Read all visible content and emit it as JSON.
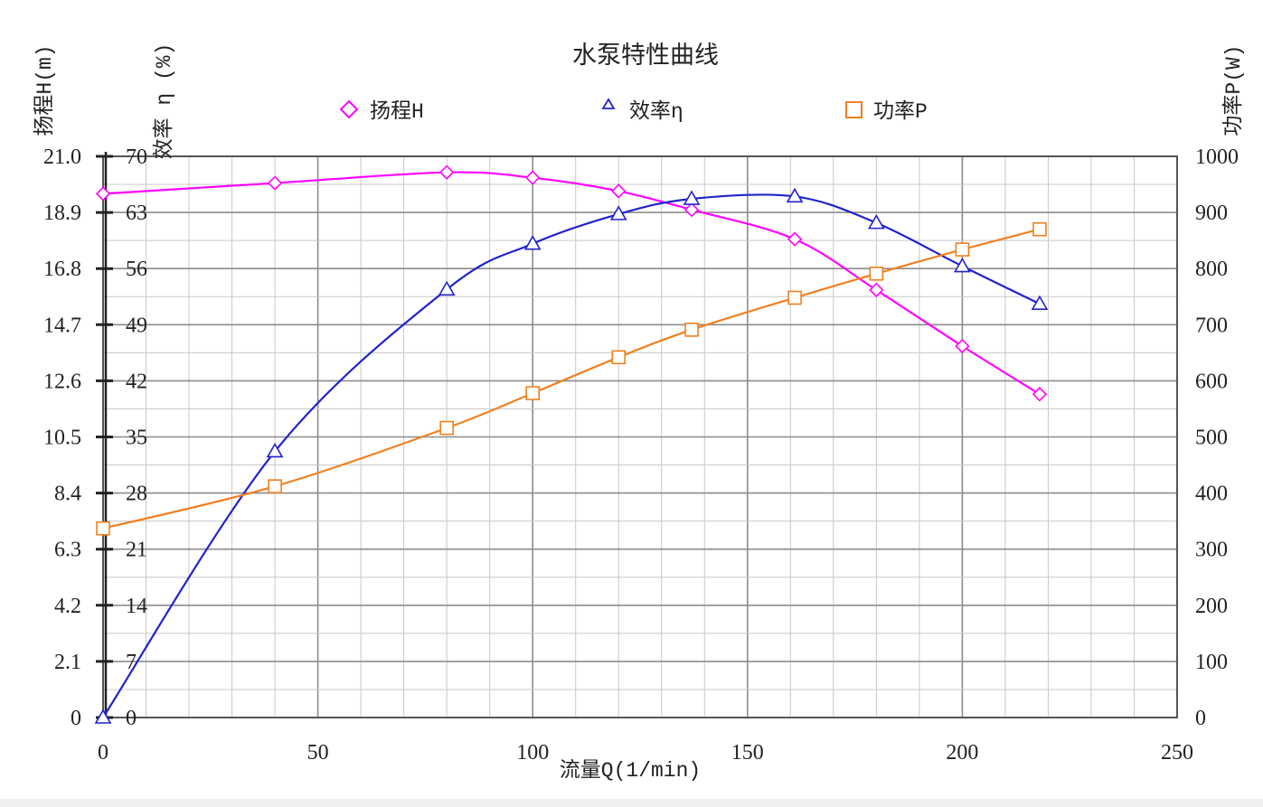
{
  "chart_data": {
    "type": "line",
    "title": "水泵特性曲线",
    "xlabel": "流量Q(1/min)",
    "xlim": [
      0,
      250
    ],
    "x_ticks": [
      0,
      50,
      100,
      150,
      200,
      250
    ],
    "x_tick_labels": [
      "0",
      "50",
      "100",
      "150",
      "200",
      "250"
    ],
    "axes": {
      "head": {
        "label": "扬程H(m)",
        "lim": [
          0,
          21.0
        ],
        "ticks": [
          0,
          2.1,
          4.2,
          6.3,
          8.4,
          10.5,
          12.6,
          14.7,
          16.8,
          18.9,
          21.0
        ],
        "tick_labels": [
          "0",
          "2.1",
          "4.2",
          "6.3",
          "8.4",
          "10.5",
          "12.6",
          "14.7",
          "16.8",
          "18.9",
          "21.0"
        ]
      },
      "efficiency": {
        "label": "效率 η (%)",
        "lim": [
          0,
          70
        ],
        "ticks": [
          0,
          7,
          14,
          21,
          28,
          35,
          42,
          49,
          56,
          63,
          70
        ],
        "tick_labels": [
          "0",
          "7",
          "14",
          "21",
          "28",
          "35",
          "42",
          "49",
          "56",
          "63",
          "70"
        ]
      },
      "power": {
        "label": "功率P(W)",
        "lim": [
          0,
          1000
        ],
        "ticks": [
          0,
          100,
          200,
          300,
          400,
          500,
          600,
          700,
          800,
          900,
          1000
        ],
        "tick_labels": [
          "0",
          "100",
          "200",
          "300",
          "400",
          "500",
          "600",
          "700",
          "800",
          "900",
          "1000"
        ]
      }
    },
    "grid": true,
    "legend_position": "top",
    "series": [
      {
        "name": "扬程H",
        "axis": "head",
        "marker": "diamond",
        "color": "#ff00ff",
        "x": [
          0,
          40,
          80,
          100,
          120,
          137,
          161,
          180,
          200,
          218
        ],
        "values": [
          19.6,
          20.0,
          20.4,
          20.2,
          19.7,
          19.0,
          17.9,
          16.0,
          13.9,
          12.1
        ]
      },
      {
        "name": "效率η",
        "axis": "efficiency",
        "marker": "triangle",
        "color": "#2222cc",
        "x": [
          0,
          40,
          80,
          100,
          120,
          137,
          161,
          180,
          200,
          218
        ],
        "values": [
          0,
          33.2,
          53.4,
          59.1,
          62.8,
          64.7,
          65.0,
          61.7,
          56.3,
          51.6
        ]
      },
      {
        "name": "功率P",
        "axis": "power",
        "marker": "square",
        "color": "#f08020",
        "x": [
          0,
          40,
          80,
          100,
          120,
          137,
          161,
          180,
          200,
          218
        ],
        "values": [
          337,
          412,
          516,
          578,
          642,
          691,
          748,
          791,
          834,
          870
        ]
      }
    ]
  }
}
